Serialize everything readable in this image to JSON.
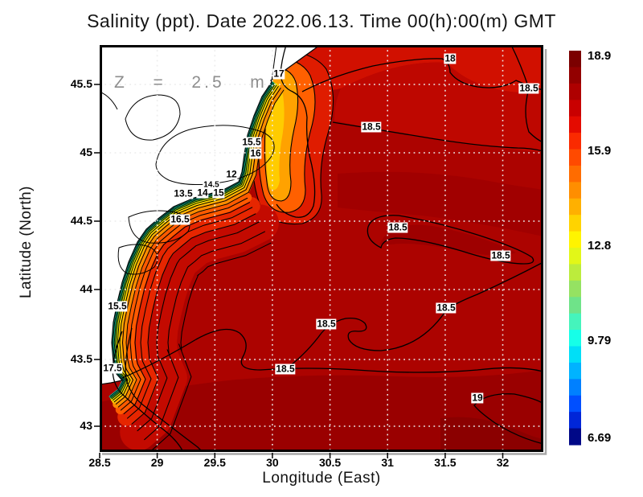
{
  "chart_data": {
    "type": "heatmap",
    "title": "Salinity (ppt). Date 2022.06.13. Time 00(h):00(m) GMT",
    "variable": "Salinity (ppt)",
    "date": "2022.06.13",
    "time": "00(h):00(m) GMT",
    "depth_annotation": "Z  =  2.5  m",
    "xlabel": "Longitude (East)",
    "ylabel": "Latitude (North)",
    "xlim": [
      28.5,
      32.35
    ],
    "ylim": [
      42.81,
      45.79
    ],
    "x_ticks": [
      "28.5",
      "29",
      "29.5",
      "30",
      "30.5",
      "31",
      "31.5",
      "32"
    ],
    "y_ticks": [
      "45.5",
      "45",
      "44.5",
      "44",
      "43.5",
      "43"
    ],
    "grid": true,
    "legend_position": "right",
    "colorbar": {
      "min": 6.69,
      "max": 18.9,
      "labels": [
        "18.9",
        "15.9",
        "12.8",
        "9.79",
        "6.69"
      ],
      "colors": [
        "#7B0000",
        "#930000",
        "#AE0000",
        "#C90000",
        "#E40B00",
        "#FA2A00",
        "#FF4A00",
        "#FF6C00",
        "#FF8E00",
        "#FFB000",
        "#FFD300",
        "#FFF400",
        "#E2F718",
        "#BCEC3C",
        "#95E262",
        "#6FE389",
        "#45F4BC",
        "#16FFE8",
        "#00DFF7",
        "#00B3FF",
        "#0080FF",
        "#004FFF",
        "#0026D8",
        "#000887"
      ]
    },
    "contour_levels_shown": [
      12,
      13.5,
      14,
      14.5,
      15,
      15.5,
      16,
      16.5,
      17,
      17.5,
      18,
      18.5,
      19
    ],
    "contour_labels": [
      {
        "value": "17",
        "lon": 30.06,
        "lat": 45.58
      },
      {
        "value": "18",
        "lon": 31.54,
        "lat": 45.69
      },
      {
        "value": "18.5",
        "lon": 32.23,
        "lat": 45.47
      },
      {
        "value": "18.5",
        "lon": 30.86,
        "lat": 45.19
      },
      {
        "value": "15.5",
        "lon": 29.82,
        "lat": 45.08
      },
      {
        "value": "16",
        "lon": 29.85,
        "lat": 44.99
      },
      {
        "value": "12",
        "lon": 29.64,
        "lat": 44.84
      },
      {
        "value": "14.5",
        "lon": 29.47,
        "lat": 44.76
      },
      {
        "value": "14",
        "lon": 29.39,
        "lat": 44.71
      },
      {
        "value": "15",
        "lon": 29.53,
        "lat": 44.71
      },
      {
        "value": "13.5",
        "lon": 29.23,
        "lat": 44.7
      },
      {
        "value": "16.5",
        "lon": 29.2,
        "lat": 44.51
      },
      {
        "value": "18.5",
        "lon": 31.09,
        "lat": 44.45
      },
      {
        "value": "18.5",
        "lon": 31.98,
        "lat": 44.25
      },
      {
        "value": "15.5",
        "lon": 28.65,
        "lat": 43.88
      },
      {
        "value": "18.5",
        "lon": 31.51,
        "lat": 43.86
      },
      {
        "value": "18.5",
        "lon": 30.47,
        "lat": 43.75
      },
      {
        "value": "17.5",
        "lon": 28.61,
        "lat": 43.42
      },
      {
        "value": "18.5",
        "lon": 30.11,
        "lat": 43.42
      },
      {
        "value": "19",
        "lon": 31.77,
        "lat": 43.21
      }
    ],
    "colors": {
      "sea_base": "#AC0300",
      "sea_dark": "#9A0000",
      "sea_bright": "#D11000",
      "land": "#FFFFFF",
      "coastline": "#000000",
      "annotation": "#8E8E8E",
      "gridline": "#ECECEC"
    }
  }
}
